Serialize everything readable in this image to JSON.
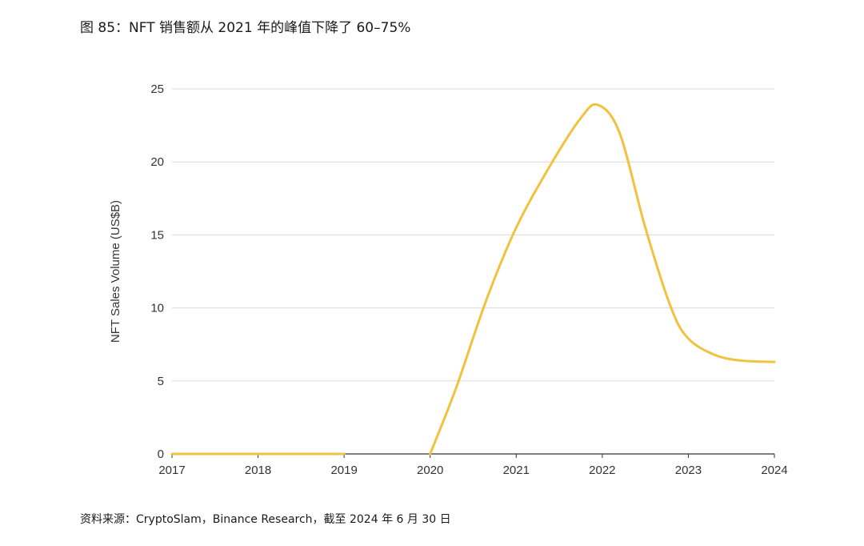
{
  "figure": {
    "title": "图 85：NFT 销售额从 2021 年的峰值下降了 60–75%",
    "source": "资料来源：CryptoSlam，Binance Research，截至 2024 年 6 月 30 日"
  },
  "colors": {
    "line": "#F0C23E",
    "grid": "#D9D9D9",
    "axis": "#333333",
    "text": "#333333"
  },
  "chart_data": {
    "type": "line",
    "title": "",
    "xlabel": "",
    "ylabel": "NFT Sales Volume (US$B)",
    "xlim": [
      2017,
      2024
    ],
    "ylim": [
      0,
      25
    ],
    "x_ticks": [
      2017,
      2018,
      2019,
      2020,
      2021,
      2022,
      2023,
      2024
    ],
    "x_tick_labels": [
      "2017",
      "2018",
      "2019",
      "2020",
      "2021",
      "2022",
      "2023",
      "2024"
    ],
    "y_ticks": [
      0,
      5,
      10,
      15,
      20,
      25
    ],
    "y_tick_labels": [
      "0",
      "5",
      "10",
      "15",
      "20",
      "25"
    ],
    "grid": true,
    "legend": "none",
    "series": [
      {
        "name": "NFT Sales Volume",
        "segments": [
          {
            "x": [
              2017.0,
              2019.0
            ],
            "y": [
              0.0,
              0.0
            ]
          },
          {
            "x": [
              2020.0,
              2020.3,
              2020.65,
              2021.0,
              2021.4,
              2021.75,
              2021.95,
              2022.2,
              2022.5,
              2022.8,
              2023.0,
              2023.3,
              2023.6,
              2024.0
            ],
            "y": [
              0.0,
              4.5,
              10.5,
              15.5,
              19.8,
              23.0,
              23.9,
              22.0,
              15.5,
              10.0,
              7.9,
              6.8,
              6.4,
              6.3
            ]
          }
        ]
      }
    ]
  }
}
